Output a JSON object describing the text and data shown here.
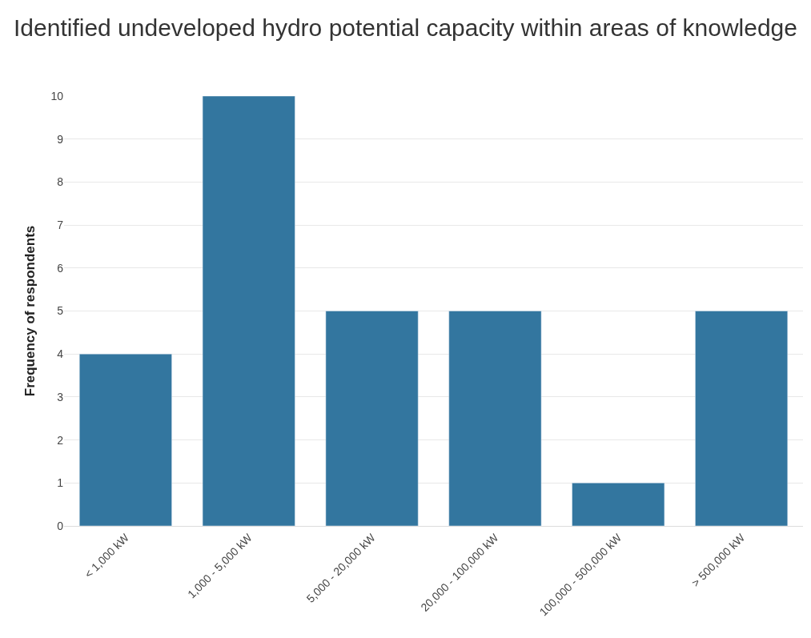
{
  "chart_data": {
    "type": "bar",
    "title": "Identified undeveloped hydro potential capacity within areas of knowledge",
    "ylabel": "Frequency of respondents",
    "categories": [
      "< 1,000 kW",
      "1,000 - 5,000 kW",
      "5,000 - 20,000 kW",
      "20,000 - 100,000 kW",
      "100,000 - 500,000 kW",
      "> 500,000 kW"
    ],
    "values": [
      4,
      10,
      5,
      5,
      1,
      5
    ],
    "color": "#33769f",
    "ylim": [
      0,
      10
    ],
    "yticks": [
      0,
      1,
      2,
      3,
      4,
      5,
      6,
      7,
      8,
      9,
      10
    ],
    "grid": "y",
    "legend": false
  }
}
